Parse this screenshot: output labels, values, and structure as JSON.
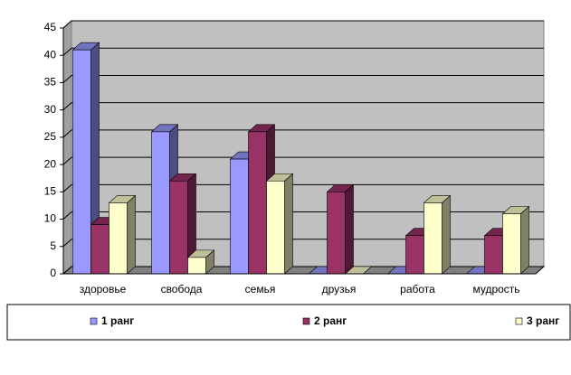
{
  "chart_data": {
    "type": "bar",
    "categories": [
      "здоровье",
      "свобода",
      "семья",
      "друзья",
      "работа",
      "мудрость"
    ],
    "series": [
      {
        "name": "1 ранг",
        "color": "#9999ff",
        "values": [
          41,
          26,
          21,
          0,
          0,
          0
        ]
      },
      {
        "name": "2 ранг",
        "color": "#993366",
        "values": [
          9,
          17,
          26,
          15,
          7,
          7
        ]
      },
      {
        "name": "3 ранг",
        "color": "#ffffcc",
        "values": [
          13,
          3,
          17,
          0,
          13,
          11
        ]
      }
    ],
    "ylim": [
      0,
      45
    ],
    "yticks": [
      0,
      5,
      10,
      15,
      20,
      25,
      30,
      35,
      40,
      45
    ],
    "grid": true,
    "legend": "bottom",
    "wall_color": "#c0c0c0"
  }
}
